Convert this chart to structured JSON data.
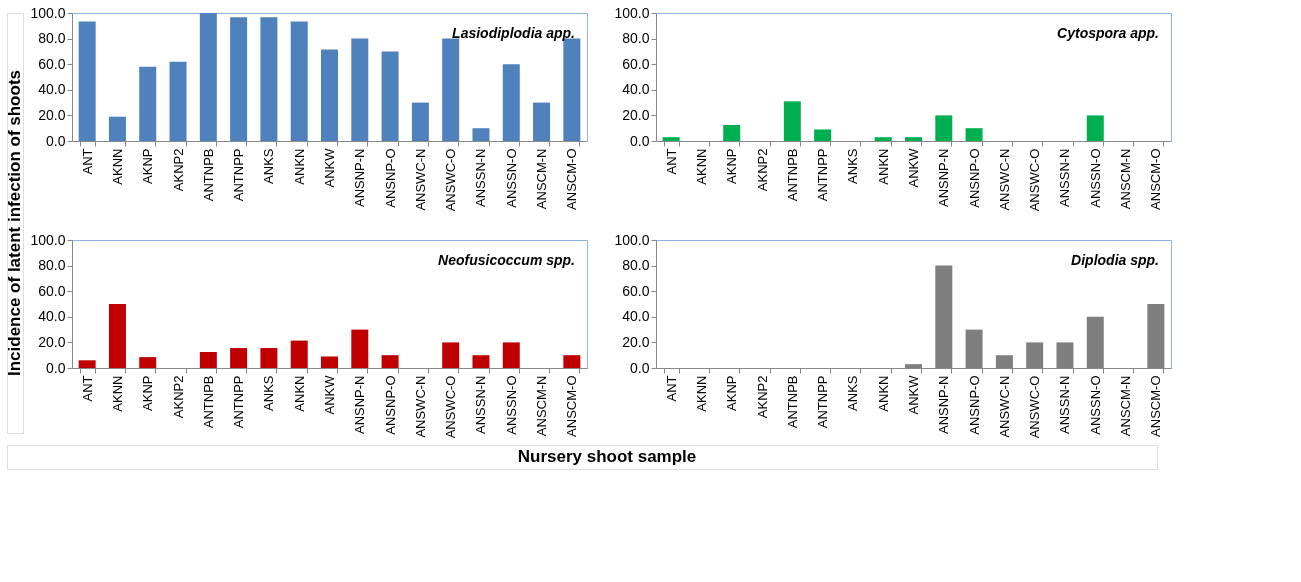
{
  "chart_data": [
    {
      "type": "bar",
      "ylabel": "Incidence of latent infection of shoots",
      "xlabel": "Nursery shoot sample",
      "annotations": [
        "Lasiodiplodia app."
      ],
      "categories": [
        "ANT",
        "AKNN",
        "AKNP",
        "AKNP2",
        "ANTNPB",
        "ANTNPP",
        "ANKS",
        "ANKN",
        "ANKW",
        "ANSNP-N",
        "ANSNP-O",
        "ANSWC-N",
        "ANSWC-O",
        "ANSSN-N",
        "ANSSN-O",
        "ANSCM-N",
        "ANSCM-O"
      ],
      "values": [
        93.3,
        19,
        58,
        62,
        100,
        96.7,
        96.7,
        93.3,
        71.4,
        80,
        70,
        30,
        80,
        10,
        60,
        30,
        80
      ],
      "color": "#4f81bd",
      "ylim": [
        0,
        100
      ],
      "yticks": [
        {
          "value": 0,
          "label": "0.0"
        },
        {
          "value": 20,
          "label": "20.0"
        },
        {
          "value": 40,
          "label": "40.0"
        },
        {
          "value": 60,
          "label": "60.0"
        },
        {
          "value": 80,
          "label": "80.0"
        },
        {
          "value": 100,
          "label": "100.0"
        }
      ],
      "grid": false
    },
    {
      "type": "bar",
      "annotations": [
        "Cytospora app."
      ],
      "categories": [
        "ANT",
        "AKNN",
        "AKNP",
        "AKNP2",
        "ANTNPB",
        "ANTNPP",
        "ANKS",
        "ANKN",
        "ANKW",
        "ANSNP-N",
        "ANSNP-O",
        "ANSWC-N",
        "ANSWC-O",
        "ANSSN-N",
        "ANSSN-O",
        "ANSCM-N",
        "ANSCM-O"
      ],
      "values": [
        3,
        0,
        12.5,
        0,
        31,
        9,
        0,
        3,
        3,
        20,
        10,
        0,
        0,
        0,
        20,
        0,
        0
      ],
      "color": "#00b050",
      "ylim": [
        0,
        100
      ],
      "yticks": [
        {
          "value": 0,
          "label": "0.0"
        },
        {
          "value": 20,
          "label": "20.0"
        },
        {
          "value": 40,
          "label": "40.0"
        },
        {
          "value": 60,
          "label": "60.0"
        },
        {
          "value": 80,
          "label": "80.0"
        },
        {
          "value": 100,
          "label": "100.0"
        }
      ],
      "grid": false
    },
    {
      "type": "bar",
      "annotations": [
        "Neofusicoccum spp."
      ],
      "categories": [
        "ANT",
        "AKNN",
        "AKNP",
        "AKNP2",
        "ANTNPB",
        "ANTNPP",
        "ANKS",
        "ANKN",
        "ANKW",
        "ANSNP-N",
        "ANSNP-O",
        "ANSWC-N",
        "ANSWC-O",
        "ANSSN-N",
        "ANSSN-O",
        "ANSCM-N",
        "ANSCM-O"
      ],
      "values": [
        6,
        50,
        8.5,
        0,
        12.5,
        15.6,
        15.6,
        21.4,
        9,
        30,
        10,
        0,
        20,
        10,
        20,
        0,
        10
      ],
      "color": "#c00000",
      "ylim": [
        0,
        100
      ],
      "yticks": [
        {
          "value": 0,
          "label": "0.0"
        },
        {
          "value": 20,
          "label": "20.0"
        },
        {
          "value": 40,
          "label": "40.0"
        },
        {
          "value": 60,
          "label": "60.0"
        },
        {
          "value": 80,
          "label": "80.0"
        },
        {
          "value": 100,
          "label": "100.0"
        }
      ],
      "grid": false
    },
    {
      "type": "bar",
      "annotations": [
        "Diplodia spp."
      ],
      "categories": [
        "ANT",
        "AKNN",
        "AKNP",
        "AKNP2",
        "ANTNPB",
        "ANTNPP",
        "ANKS",
        "ANKN",
        "ANKW",
        "ANSNP-N",
        "ANSNP-O",
        "ANSWC-N",
        "ANSWC-O",
        "ANSSN-N",
        "ANSSN-O",
        "ANSCM-N",
        "ANSCM-O"
      ],
      "values": [
        0,
        0,
        0,
        0,
        0,
        0,
        0,
        0,
        3,
        80,
        30,
        10,
        20,
        20,
        40,
        0,
        50
      ],
      "color": "#7f7f7f",
      "ylim": [
        0,
        100
      ],
      "yticks": [
        {
          "value": 0,
          "label": "0.0"
        },
        {
          "value": 20,
          "label": "20.0"
        },
        {
          "value": 40,
          "label": "40.0"
        },
        {
          "value": 60,
          "label": "60.0"
        },
        {
          "value": 80,
          "label": "80.0"
        },
        {
          "value": 100,
          "label": "100.0"
        }
      ],
      "grid": false
    }
  ]
}
